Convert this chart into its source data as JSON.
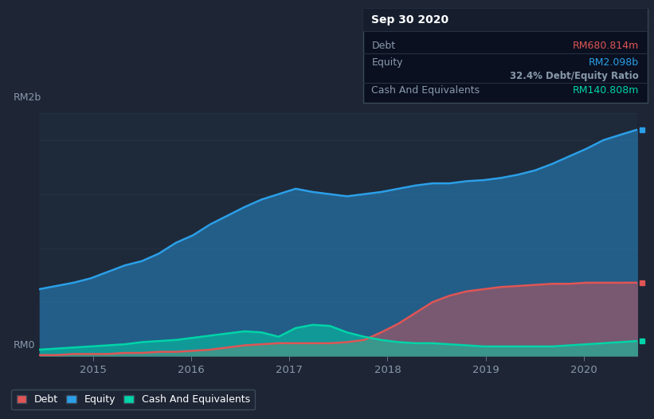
{
  "bg_color": "#1e2535",
  "plot_bg_color": "#1e2a3a",
  "title_box_text": "Sep 30 2020",
  "tooltip_debt_label": "Debt",
  "tooltip_debt_value": "RM680.814m",
  "tooltip_equity_label": "Equity",
  "tooltip_equity_value": "RM2.098b",
  "tooltip_ratio": "32.4% Debt/Equity Ratio",
  "tooltip_cash_label": "Cash And Equivalents",
  "tooltip_cash_value": "RM140.808m",
  "ylabel_top": "RM2b",
  "ylabel_bottom": "RM0",
  "x_labels": [
    "2015",
    "2016",
    "2017",
    "2018",
    "2019",
    "2020"
  ],
  "debt_color": "#e05555",
  "equity_color": "#2b9fe8",
  "cash_color": "#00d4a8",
  "legend_border_color": "#3a4a5a",
  "text_color_light": "#8899aa",
  "grid_color": "#263040",
  "white": "#ffffff",
  "equity_data": [
    0.62,
    0.65,
    0.68,
    0.72,
    0.78,
    0.84,
    0.88,
    0.95,
    1.05,
    1.12,
    1.22,
    1.3,
    1.38,
    1.45,
    1.5,
    1.55,
    1.52,
    1.5,
    1.48,
    1.5,
    1.52,
    1.55,
    1.58,
    1.6,
    1.6,
    1.62,
    1.63,
    1.65,
    1.68,
    1.72,
    1.78,
    1.85,
    1.92,
    2.0,
    2.05,
    2.098
  ],
  "debt_data": [
    0.01,
    0.01,
    0.02,
    0.02,
    0.02,
    0.03,
    0.03,
    0.04,
    0.04,
    0.05,
    0.06,
    0.08,
    0.1,
    0.11,
    0.12,
    0.12,
    0.12,
    0.12,
    0.13,
    0.15,
    0.22,
    0.3,
    0.4,
    0.5,
    0.56,
    0.6,
    0.62,
    0.64,
    0.65,
    0.66,
    0.67,
    0.67,
    0.68,
    0.68,
    0.68,
    0.6808
  ],
  "cash_data": [
    0.06,
    0.07,
    0.08,
    0.09,
    0.1,
    0.11,
    0.13,
    0.14,
    0.15,
    0.17,
    0.19,
    0.21,
    0.23,
    0.22,
    0.18,
    0.26,
    0.29,
    0.28,
    0.22,
    0.18,
    0.15,
    0.13,
    0.12,
    0.12,
    0.11,
    0.1,
    0.09,
    0.09,
    0.09,
    0.09,
    0.09,
    0.1,
    0.11,
    0.12,
    0.13,
    0.1408
  ]
}
